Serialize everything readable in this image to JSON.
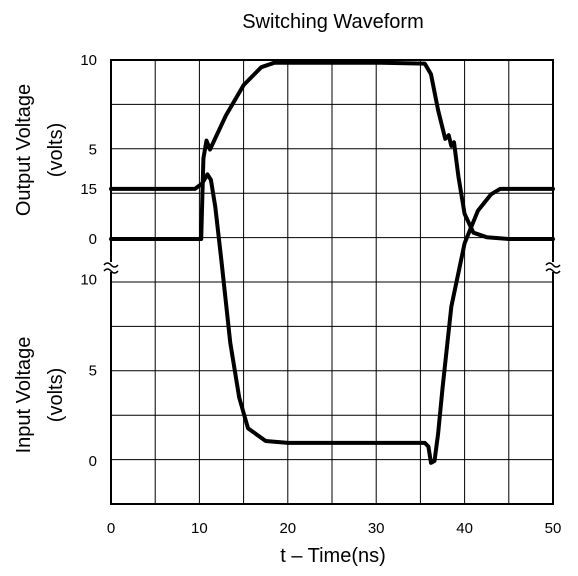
{
  "chart_data": {
    "type": "line",
    "title": "Switching Waveform",
    "x_label": "t – Time(ns)",
    "x_range": [
      0,
      50
    ],
    "x_ticks": [
      "0",
      "10",
      "20",
      "30",
      "40",
      "50"
    ],
    "axis_break": "between panels",
    "grid": true,
    "panels": [
      {
        "y_label": [
          "Output Voltage",
          "(volts)"
        ],
        "y_range": [
          0,
          10
        ],
        "y_ticks": [
          "0",
          "5",
          "10"
        ],
        "series": [
          {
            "x": [
              0,
              10.2,
              10.45,
              10.8,
              11.2,
              13.0,
              15.0,
              17.0,
              18.5,
              20.0,
              30.0,
              35.5,
              36.2,
              37.0,
              37.8,
              38.2,
              38.5,
              38.8,
              39.3,
              40.0,
              41.0,
              42.5,
              45.0,
              50.0
            ],
            "y": [
              0,
              0,
              4.5,
              5.5,
              5.0,
              6.9,
              8.6,
              9.6,
              9.85,
              9.85,
              9.85,
              9.8,
              9.2,
              7.2,
              5.6,
              5.8,
              5.2,
              5.4,
              3.5,
              1.4,
              0.35,
              0.1,
              0.0,
              0.0
            ]
          }
        ]
      },
      {
        "y_label": [
          "Input Voltage",
          "(volts)"
        ],
        "y_range": [
          0,
          15
        ],
        "y_ticks": [
          "0",
          "5",
          "10",
          "15"
        ],
        "series": [
          {
            "x": [
              0,
              9.5,
              10.3,
              10.9,
              11.3,
              11.8,
              12.5,
              13.5,
              14.5,
              15.5,
              17.5,
              20.0,
              30.0,
              35.5,
              35.9,
              36.2,
              36.6,
              37.0,
              37.5,
              38.5,
              40.0,
              41.5,
              43.0,
              44.0,
              50.0
            ],
            "y": [
              15.0,
              15.0,
              15.3,
              15.8,
              15.5,
              14.0,
              11.0,
              6.5,
              3.5,
              1.8,
              1.1,
              1.0,
              1.0,
              1.0,
              0.8,
              -0.1,
              0.0,
              1.5,
              4.0,
              8.5,
              12.0,
              13.8,
              14.7,
              15.0,
              15.0
            ]
          }
        ]
      }
    ]
  }
}
